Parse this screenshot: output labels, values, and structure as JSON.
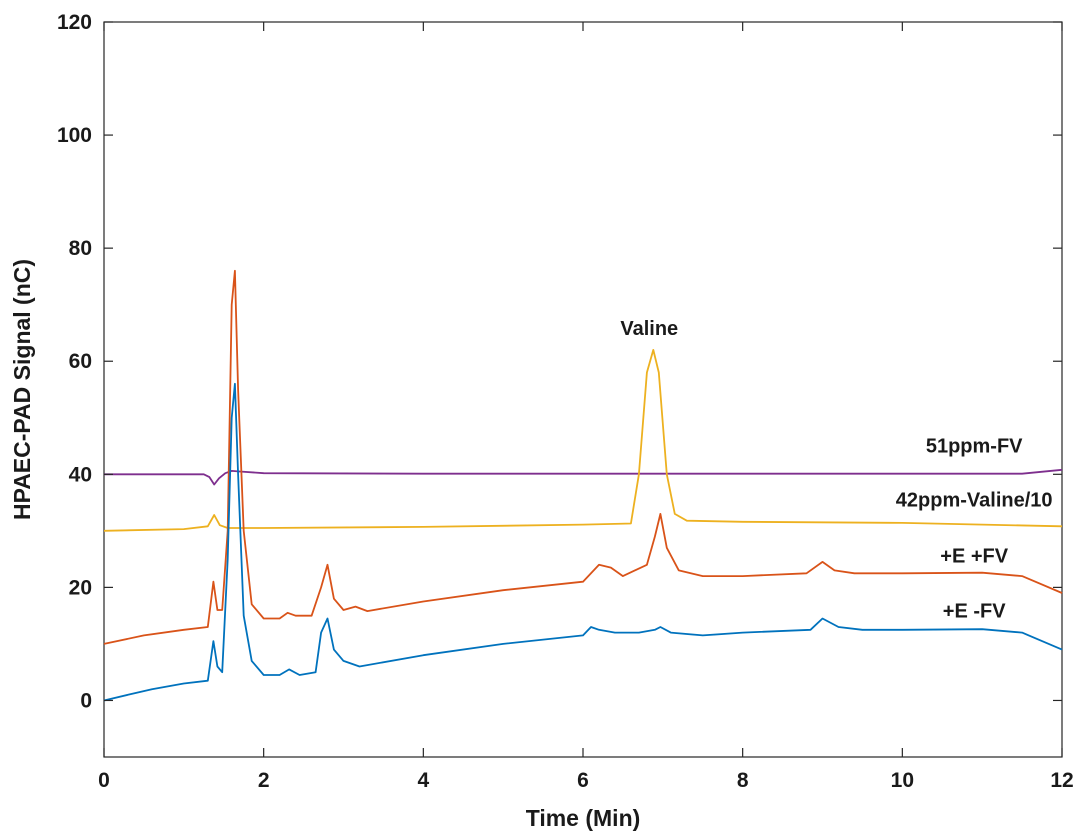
{
  "chart_data": {
    "type": "line",
    "xlabel": "Time (Min)",
    "ylabel": "HPAEC-PAD Signal (nC)",
    "xlim": [
      0,
      12
    ],
    "ylim": [
      -10,
      120
    ],
    "x_ticks": [
      0,
      2,
      4,
      6,
      8,
      10,
      12
    ],
    "y_ticks": [
      0,
      20,
      40,
      60,
      80,
      100,
      120
    ],
    "grid": false,
    "annotations": [
      {
        "text": "Valine",
        "x": 6.83,
        "y": 64.6
      },
      {
        "text": "51ppm-FV",
        "x": 10.9,
        "y": 43.9
      },
      {
        "text": "42ppm-Valine/10",
        "x": 10.9,
        "y": 34.3
      },
      {
        "text": "+E +FV",
        "x": 10.9,
        "y": 24.4
      },
      {
        "text": "+E -FV",
        "x": 10.9,
        "y": 14.7
      }
    ],
    "series": [
      {
        "color": "#7E2F8E",
        "x": [
          0,
          1.25,
          1.32,
          1.38,
          1.44,
          1.52,
          1.6,
          1.7,
          2,
          4,
          6,
          8,
          10,
          11.5,
          12
        ],
        "y": [
          40,
          40,
          39.5,
          38.2,
          39.3,
          40.2,
          40.6,
          40.5,
          40.2,
          40.1,
          40.1,
          40.1,
          40.1,
          40.1,
          40.8
        ]
      },
      {
        "color": "#EDB120",
        "x": [
          0,
          1,
          1.3,
          1.38,
          1.45,
          1.55,
          2,
          4,
          6,
          6.6,
          6.7,
          6.8,
          6.88,
          6.95,
          7.05,
          7.15,
          7.3,
          8,
          10,
          12
        ],
        "y": [
          30,
          30.3,
          30.8,
          32.8,
          31,
          30.5,
          30.5,
          30.7,
          31.1,
          31.3,
          40,
          58,
          62,
          58,
          40,
          33,
          31.8,
          31.6,
          31.4,
          30.8
        ]
      },
      {
        "color": "#D95319",
        "x": [
          0,
          0.5,
          1,
          1.3,
          1.37,
          1.42,
          1.48,
          1.55,
          1.6,
          1.64,
          1.68,
          1.75,
          1.85,
          2.0,
          2.2,
          2.3,
          2.4,
          2.6,
          2.72,
          2.8,
          2.88,
          3.0,
          3.15,
          3.3,
          4,
          5,
          6,
          6.1,
          6.2,
          6.35,
          6.5,
          6.8,
          6.9,
          6.97,
          7.05,
          7.2,
          7.5,
          8,
          8.8,
          9.0,
          9.15,
          9.4,
          10,
          11,
          11.5,
          12
        ],
        "y": [
          10,
          11.5,
          12.5,
          13,
          21,
          16,
          16,
          30,
          70,
          76,
          55,
          30,
          17,
          14.5,
          14.5,
          15.5,
          15,
          15,
          20,
          24,
          18,
          16,
          16.6,
          15.8,
          17.5,
          19.5,
          21,
          22.5,
          24,
          23.5,
          22,
          24,
          29,
          33,
          27,
          23,
          22,
          22,
          22.5,
          24.5,
          23,
          22.5,
          22.5,
          22.6,
          22,
          19
        ]
      },
      {
        "color": "#0072BD",
        "x": [
          0,
          0.3,
          0.6,
          1,
          1.3,
          1.37,
          1.42,
          1.48,
          1.55,
          1.6,
          1.64,
          1.68,
          1.75,
          1.85,
          2.0,
          2.2,
          2.32,
          2.45,
          2.65,
          2.72,
          2.8,
          2.88,
          3.0,
          3.2,
          4,
          5,
          6,
          6.1,
          6.2,
          6.4,
          6.7,
          6.9,
          6.97,
          7.1,
          7.5,
          8,
          8.85,
          9.0,
          9.2,
          9.5,
          10,
          11,
          11.5,
          12
        ],
        "y": [
          0,
          1,
          2,
          3,
          3.5,
          10.5,
          6,
          5,
          25,
          50,
          56,
          40,
          15,
          7,
          4.5,
          4.5,
          5.5,
          4.5,
          5,
          12,
          14.5,
          9,
          7,
          6,
          8,
          10,
          11.5,
          13,
          12.5,
          12,
          12,
          12.5,
          13,
          12,
          11.5,
          12,
          12.5,
          14.5,
          13,
          12.5,
          12.5,
          12.6,
          12,
          9
        ]
      }
    ]
  }
}
